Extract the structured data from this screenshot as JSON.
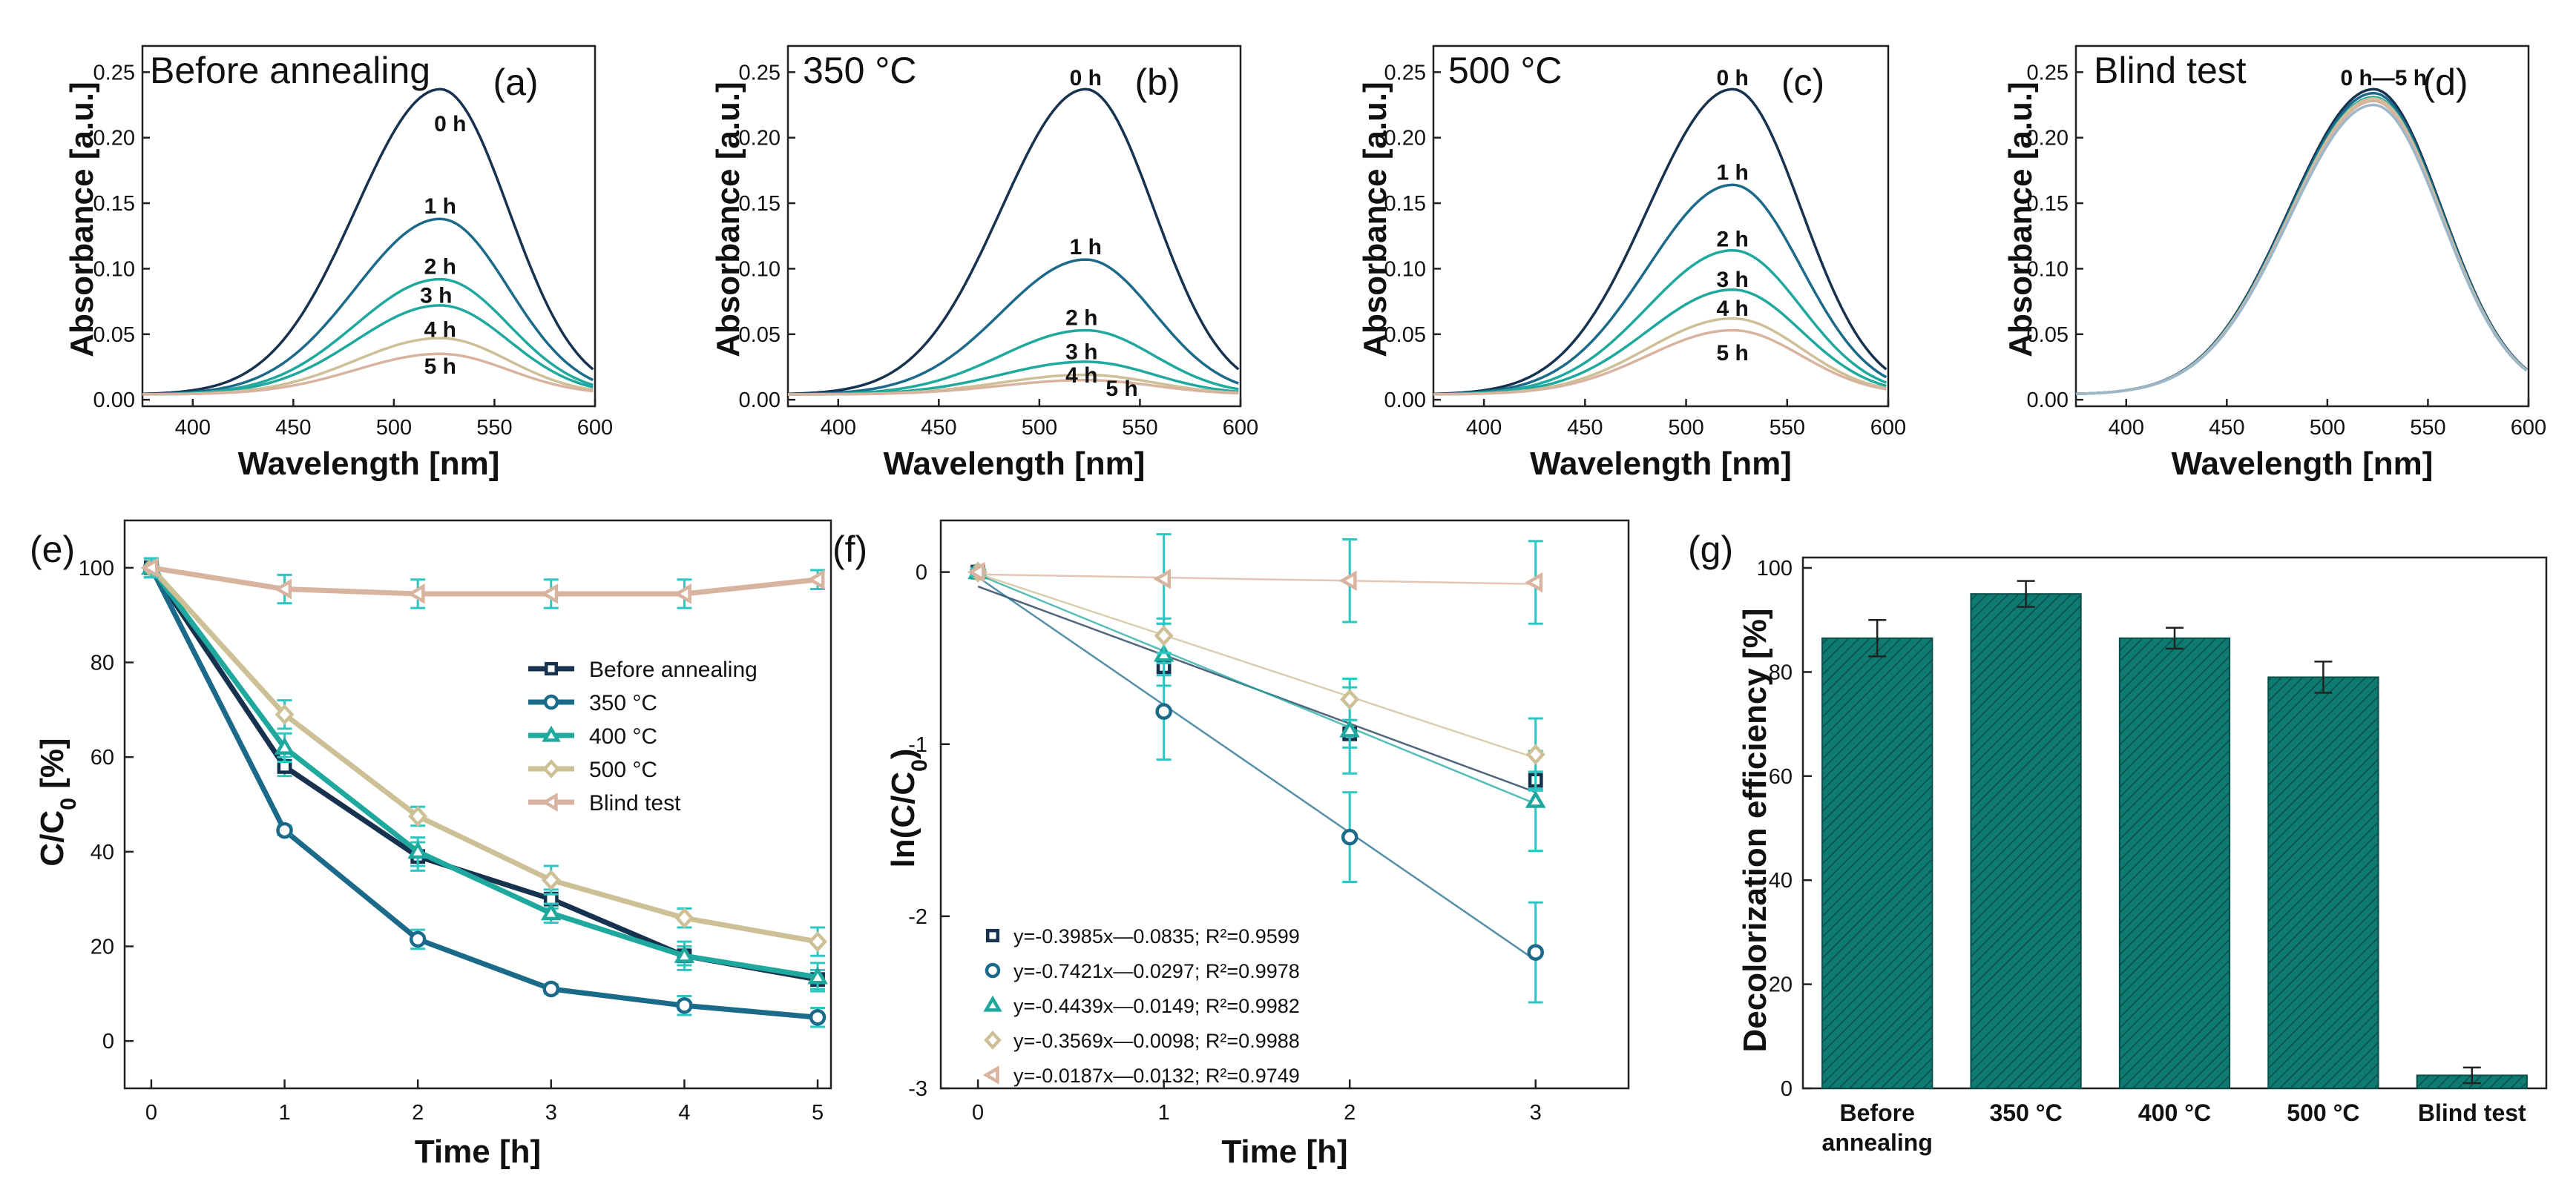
{
  "colors": {
    "axis": "#222222",
    "before": "#16324f",
    "c350": "#1c6a8a",
    "c400": "#1fa89e",
    "c500": "#cdbf96",
    "blind": "#d8b4a0",
    "bar": "#0f7a70",
    "errorbar": "#2cc7c2"
  },
  "chart_data": [
    {
      "type": "line",
      "panel_label": "(a)",
      "title": "Before annealing",
      "xlabel": "Wavelength [nm]",
      "ylabel": "Absorbance [a.u.]",
      "xlim": [
        375,
        600
      ],
      "ylim": [
        -0.005,
        0.27
      ],
      "xticks": [
        "400",
        "450",
        "500",
        "550",
        "600"
      ],
      "yticks": [
        "0.00",
        "0.05",
        "0.10",
        "0.15",
        "0.20",
        "0.25"
      ],
      "peak_wavelength": 523,
      "series": [
        {
          "name": "0 h",
          "peak": 0.233
        },
        {
          "name": "1 h",
          "peak": 0.134
        },
        {
          "name": "2 h",
          "peak": 0.088
        },
        {
          "name": "3 h",
          "peak": 0.068
        },
        {
          "name": "4 h",
          "peak": 0.043
        },
        {
          "name": "5 h",
          "peak": 0.031
        }
      ],
      "curve_labels": [
        {
          "text": "0 h",
          "x": 528,
          "y": 0.205
        },
        {
          "text": "1 h",
          "x": 523,
          "y": 0.142
        },
        {
          "text": "2 h",
          "x": 523,
          "y": 0.096
        },
        {
          "text": "3 h",
          "x": 521,
          "y": 0.074
        },
        {
          "text": "4 h",
          "x": 523,
          "y": 0.048
        },
        {
          "text": "5 h",
          "x": 523,
          "y": 0.02
        }
      ]
    },
    {
      "type": "line",
      "panel_label": "(b)",
      "title": "350 °C",
      "xlabel": "Wavelength [nm]",
      "ylabel": "Absorbance [a.u.]",
      "xlim": [
        375,
        600
      ],
      "ylim": [
        -0.005,
        0.27
      ],
      "xticks": [
        "400",
        "450",
        "500",
        "550",
        "600"
      ],
      "yticks": [
        "0.00",
        "0.05",
        "0.10",
        "0.15",
        "0.20",
        "0.25"
      ],
      "peak_wavelength": 523,
      "series": [
        {
          "name": "0 h",
          "peak": 0.233
        },
        {
          "name": "1 h",
          "peak": 0.103
        },
        {
          "name": "2 h",
          "peak": 0.049
        },
        {
          "name": "3 h",
          "peak": 0.025
        },
        {
          "name": "4 h",
          "peak": 0.015
        },
        {
          "name": "5 h",
          "peak": 0.011
        }
      ],
      "curve_labels": [
        {
          "text": "0 h",
          "x": 523,
          "y": 0.24
        },
        {
          "text": "1 h",
          "x": 523,
          "y": 0.111
        },
        {
          "text": "2 h",
          "x": 521,
          "y": 0.057
        },
        {
          "text": "3 h",
          "x": 521,
          "y": 0.031
        },
        {
          "text": "4 h",
          "x": 521,
          "y": 0.013
        },
        {
          "text": "5 h",
          "x": 541,
          "y": 0.003
        }
      ]
    },
    {
      "type": "line",
      "panel_label": "(c)",
      "title": "500 °C",
      "xlabel": "Wavelength [nm]",
      "ylabel": "Absorbance [a.u.]",
      "xlim": [
        375,
        600
      ],
      "ylim": [
        -0.005,
        0.27
      ],
      "xticks": [
        "400",
        "450",
        "500",
        "550",
        "600"
      ],
      "yticks": [
        "0.00",
        "0.05",
        "0.10",
        "0.15",
        "0.20",
        "0.25"
      ],
      "peak_wavelength": 523,
      "series": [
        {
          "name": "0 h",
          "peak": 0.233
        },
        {
          "name": "1 h",
          "peak": 0.16
        },
        {
          "name": "2 h",
          "peak": 0.11
        },
        {
          "name": "3 h",
          "peak": 0.08
        },
        {
          "name": "4 h",
          "peak": 0.058
        },
        {
          "name": "5 h",
          "peak": 0.049
        }
      ],
      "curve_labels": [
        {
          "text": "0 h",
          "x": 523,
          "y": 0.24
        },
        {
          "text": "1 h",
          "x": 523,
          "y": 0.168
        },
        {
          "text": "2 h",
          "x": 523,
          "y": 0.117
        },
        {
          "text": "3 h",
          "x": 523,
          "y": 0.086
        },
        {
          "text": "4 h",
          "x": 523,
          "y": 0.064
        },
        {
          "text": "5 h",
          "x": 523,
          "y": 0.03
        }
      ]
    },
    {
      "type": "line",
      "panel_label": "(d)",
      "title": "Blind test",
      "xlabel": "Wavelength [nm]",
      "ylabel": "Absorbance [a.u.]",
      "xlim": [
        375,
        600
      ],
      "ylim": [
        -0.005,
        0.27
      ],
      "xticks": [
        "400",
        "450",
        "500",
        "550",
        "600"
      ],
      "yticks": [
        "0.00",
        "0.05",
        "0.10",
        "0.15",
        "0.20",
        "0.25"
      ],
      "peak_wavelength": 523,
      "series": [
        {
          "name": "0 h",
          "peak": 0.233
        },
        {
          "name": "1 h",
          "peak": 0.23
        },
        {
          "name": "2 h",
          "peak": 0.227
        },
        {
          "name": "3 h",
          "peak": 0.226
        },
        {
          "name": "4 h",
          "peak": 0.224
        },
        {
          "name": "5 h",
          "peak": 0.221
        }
      ],
      "curve_labels": [
        {
          "text": "0 h—5 h",
          "x": 528,
          "y": 0.24
        }
      ]
    },
    {
      "type": "line",
      "panel_label": "(e)",
      "xlabel": "Time [h]",
      "ylabel": "C/C",
      "ylabel_subscript": "0",
      "ylabel_suffix": " [%]",
      "xlim": [
        -0.2,
        5.1
      ],
      "ylim": [
        -10,
        110
      ],
      "xticks": [
        "0",
        "1",
        "2",
        "3",
        "4",
        "5"
      ],
      "yticks": [
        "0",
        "20",
        "40",
        "60",
        "80",
        "100"
      ],
      "x": [
        0,
        1,
        2,
        3,
        4,
        5
      ],
      "series": [
        {
          "name": "Before annealing",
          "values": [
            100,
            58,
            39,
            30,
            18,
            13
          ],
          "errors": [
            2,
            2,
            3,
            2,
            2,
            2
          ],
          "marker": "square"
        },
        {
          "name": "350 °C",
          "values": [
            100,
            44.5,
            21.5,
            11,
            7.5,
            5
          ],
          "errors": [
            2,
            1,
            2,
            1,
            2,
            2
          ],
          "marker": "circle"
        },
        {
          "name": "400 °C",
          "values": [
            100,
            62,
            40,
            27,
            18,
            13.5
          ],
          "errors": [
            2,
            3,
            3,
            2,
            3,
            3
          ],
          "marker": "triangle-up"
        },
        {
          "name": "500 °C",
          "values": [
            100,
            69,
            47.5,
            34,
            26,
            21
          ],
          "errors": [
            2,
            3,
            2,
            3,
            2,
            3
          ],
          "marker": "diamond"
        },
        {
          "name": "Blind test",
          "values": [
            100,
            95.5,
            94.5,
            94.5,
            94.5,
            97.5
          ],
          "errors": [
            2,
            3,
            3,
            3,
            3,
            2
          ],
          "marker": "triangle-left"
        }
      ],
      "legend": "center-right"
    },
    {
      "type": "scatter",
      "panel_label": "(f)",
      "xlabel": "Time [h]",
      "ylabel": "ln(C/C",
      "ylabel_subscript": "0",
      "ylabel_suffix": ")",
      "xlim": [
        -0.2,
        3.5
      ],
      "ylim": [
        -3,
        0.3
      ],
      "xticks": [
        "0",
        "1",
        "2",
        "3"
      ],
      "yticks": [
        "0",
        "-1",
        "-2",
        "-3"
      ],
      "x": [
        0,
        1,
        2,
        3
      ],
      "series": [
        {
          "name": "y=-0.3985x—0.0835; R²=0.9599",
          "values": [
            0,
            -0.55,
            -0.94,
            -1.21
          ],
          "errors": [
            0.02,
            0.05,
            0.08,
            0.05
          ],
          "slope": -0.3985,
          "intercept": -0.0835,
          "marker": "square"
        },
        {
          "name": "y=-0.7421x—0.0297; R²=0.9978",
          "values": [
            0,
            -0.81,
            -1.54,
            -2.21
          ],
          "errors": [
            0.02,
            0.28,
            0.26,
            0.29
          ],
          "slope": -0.7421,
          "intercept": -0.0297,
          "marker": "circle"
        },
        {
          "name": "y=-0.4439x—0.0149; R²=0.9982",
          "values": [
            0,
            -0.48,
            -0.92,
            -1.33
          ],
          "errors": [
            0.02,
            0.18,
            0.25,
            0.29
          ],
          "slope": -0.4439,
          "intercept": -0.0149,
          "marker": "triangle-up"
        },
        {
          "name": "y=-0.3569x—0.0098; R²=0.9988",
          "values": [
            0,
            -0.37,
            -0.74,
            -1.06
          ],
          "errors": [
            0.02,
            0.1,
            0.12,
            0.21
          ],
          "slope": -0.3569,
          "intercept": -0.0098,
          "marker": "diamond"
        },
        {
          "name": "y=-0.0187x—0.0132; R²=0.9749",
          "values": [
            0,
            -0.04,
            -0.05,
            -0.06
          ],
          "errors": [
            0.02,
            0.26,
            0.24,
            0.24
          ],
          "slope": -0.0187,
          "intercept": -0.0132,
          "marker": "triangle-left"
        }
      ],
      "legend": "bottom-left"
    },
    {
      "type": "bar",
      "panel_label": "(g)",
      "xlabel": "",
      "ylabel": "Decolorization efficiency [%]",
      "ylim": [
        0,
        102
      ],
      "yticks": [
        "0",
        "20",
        "40",
        "60",
        "80",
        "100"
      ],
      "categories": [
        [
          "Before",
          "annealing"
        ],
        [
          "350 °C"
        ],
        [
          "400 °C"
        ],
        [
          "500 °C"
        ],
        [
          "Blind test"
        ]
      ],
      "values": [
        86.5,
        95,
        86.5,
        79,
        2.5
      ],
      "errors": [
        3.5,
        2.5,
        2,
        3,
        1.5
      ]
    }
  ]
}
